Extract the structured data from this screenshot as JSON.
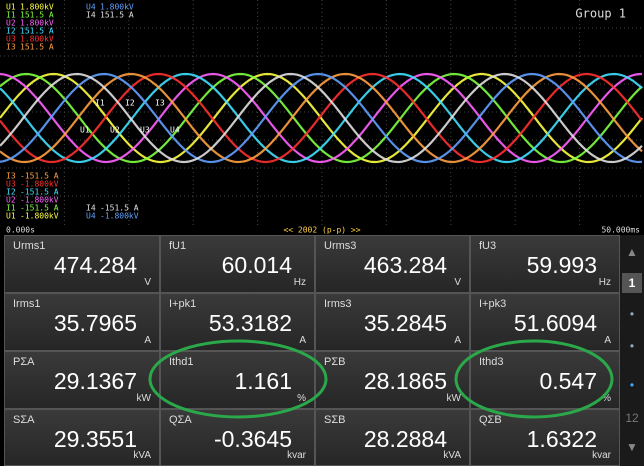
{
  "header": {
    "group": "Group 1"
  },
  "scope": {
    "top_labels": [
      {
        "channel": "U1",
        "value": "1.800kV",
        "color": "#ffff40"
      },
      {
        "channel": "I1",
        "value": "151.5 A",
        "color": "#80ff40"
      },
      {
        "channel": "U2",
        "value": "1.800kV",
        "color": "#ff60ff"
      },
      {
        "channel": "I2",
        "value": "151.5 A",
        "color": "#40e0ff"
      },
      {
        "channel": "U3",
        "value": "1.800kV",
        "color": "#ff3030"
      },
      {
        "channel": "I3",
        "value": "151.5 A",
        "color": "#ffa040"
      }
    ],
    "top_labels_right": [
      {
        "channel": "U4",
        "value": "1.800kV",
        "color": "#60a0ff"
      },
      {
        "channel": "I4",
        "value": "151.5 A",
        "color": "#e0e0e0"
      }
    ],
    "bottom_labels": [
      {
        "channel": "I3",
        "value": "-151.5 A",
        "color": "#ffa040"
      },
      {
        "channel": "U3",
        "value": "-1.800kV",
        "color": "#ff3030"
      },
      {
        "channel": "I2",
        "value": "-151.5 A",
        "color": "#40e0ff"
      },
      {
        "channel": "U2",
        "value": "-1.800kV",
        "color": "#ff60ff"
      },
      {
        "channel": "I1",
        "value": "-151.5 A",
        "color": "#80ff40"
      },
      {
        "channel": "U1",
        "value": "-1.800kV",
        "color": "#ffff40"
      }
    ],
    "bottom_labels_right": [
      {
        "channel": "I4",
        "value": "-151.5 A",
        "color": "#e0e0e0"
      },
      {
        "channel": "U4",
        "value": "-1.800kV",
        "color": "#60a0ff"
      }
    ],
    "trace_labels": [
      "I1",
      "I2",
      "I3",
      "U1",
      "U2",
      "U3",
      "U4"
    ],
    "time_start": "0.000s",
    "record": "<< 2002 (p-p) >>",
    "time_end": "50.000ms"
  },
  "table": {
    "rows": [
      [
        {
          "name": "Urms1",
          "value": "474.284",
          "unit": "V"
        },
        {
          "name": "fU1",
          "value": "60.014",
          "unit": "Hz"
        },
        {
          "name": "Urms3",
          "value": "463.284",
          "unit": "V"
        },
        {
          "name": "fU3",
          "value": "59.993",
          "unit": "Hz"
        }
      ],
      [
        {
          "name": "Irms1",
          "value": "35.7965",
          "unit": "A"
        },
        {
          "name": "I+pk1",
          "value": "53.3182",
          "unit": "A"
        },
        {
          "name": "Irms3",
          "value": "35.2845",
          "unit": "A"
        },
        {
          "name": "I+pk3",
          "value": "51.6094",
          "unit": "A"
        }
      ],
      [
        {
          "name": "PΣA",
          "value": "29.1367",
          "unit": "kW"
        },
        {
          "name": "Ithd1",
          "value": "1.161",
          "unit": "%"
        },
        {
          "name": "PΣB",
          "value": "28.1865",
          "unit": "kW"
        },
        {
          "name": "Ithd3",
          "value": "0.547",
          "unit": "%"
        }
      ],
      [
        {
          "name": "SΣA",
          "value": "29.3551",
          "unit": "kVA"
        },
        {
          "name": "QΣA",
          "value": "-0.3645",
          "unit": "kvar"
        },
        {
          "name": "SΣB",
          "value": "28.2884",
          "unit": "kVA"
        },
        {
          "name": "QΣB",
          "value": "1.6322",
          "unit": "kvar"
        }
      ]
    ]
  },
  "sidebar": {
    "page": "1",
    "last_page": "12"
  }
}
